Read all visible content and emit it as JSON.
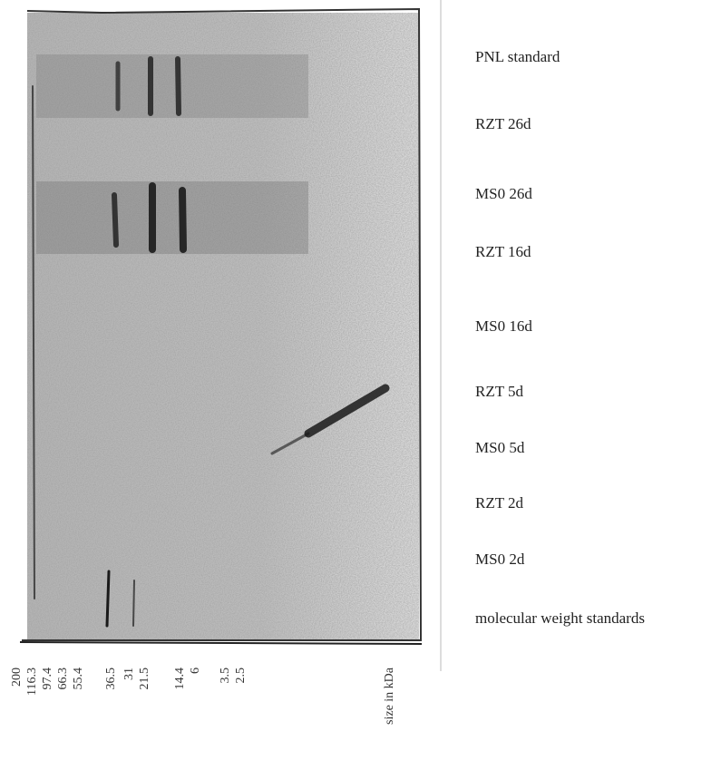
{
  "figure": {
    "lanes": [
      "PNL standard",
      "RZT 26d",
      "MS0 26d",
      "RZT 16d",
      "MS0 16d",
      "RZT 5d",
      "MS0 5d",
      "RZT 2d",
      "MS0 2d",
      "molecular weight standards"
    ],
    "size_markers": [
      "200",
      "116.3",
      "97.4",
      "66.3",
      "55.4",
      "36.5",
      "31",
      "21.5",
      "14.4",
      "6",
      "3.5",
      "2.5"
    ],
    "axis_label": "size in kDa"
  }
}
